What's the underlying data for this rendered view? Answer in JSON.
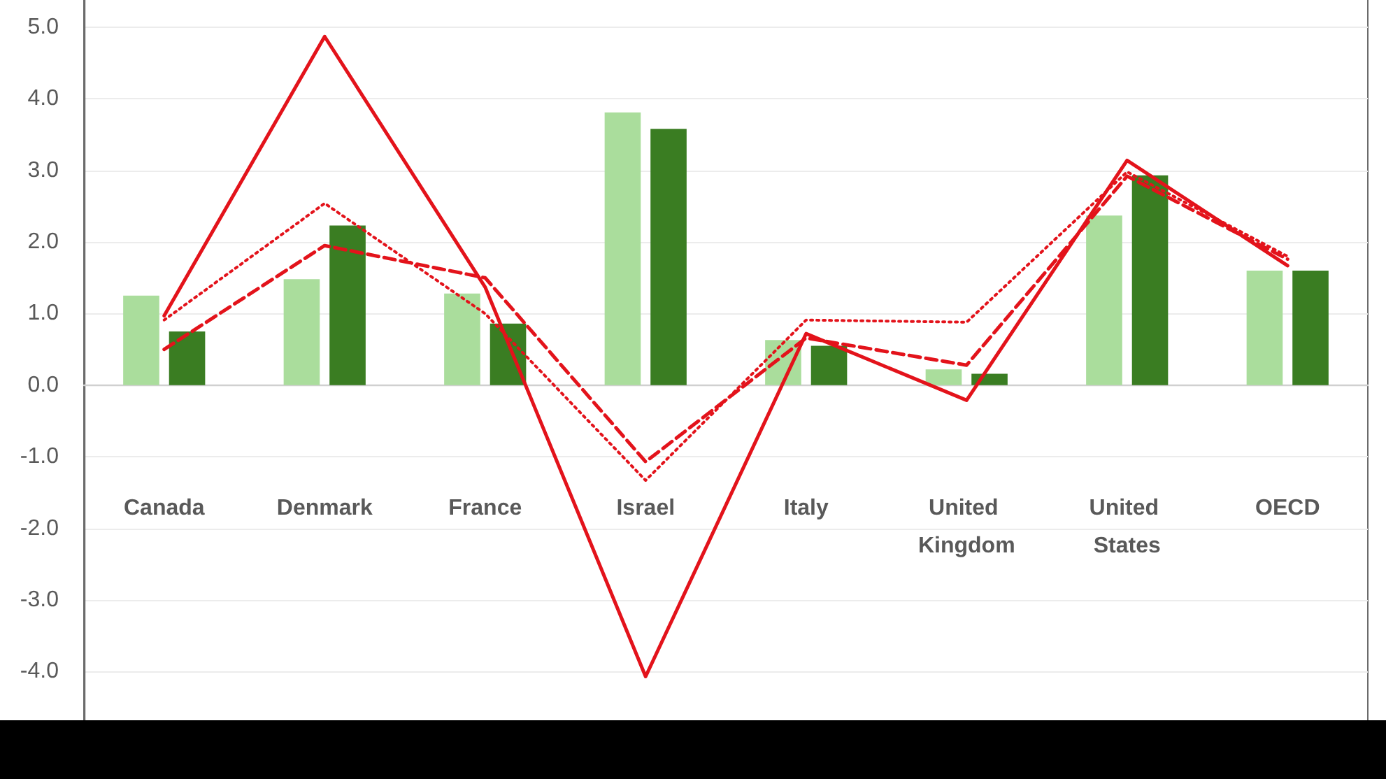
{
  "chart_data": {
    "type": "bar",
    "categories": [
      "Canada",
      "Denmark",
      "France",
      "Israel",
      "Italy",
      "United Kingdom",
      "United States",
      "OECD"
    ],
    "series": [
      {
        "color": "#aadd9c",
        "values": [
          1.25,
          1.48,
          1.28,
          3.81,
          0.63,
          0.22,
          2.37,
          1.6
        ]
      },
      {
        "color": "#3a7d22",
        "values": [
          0.75,
          2.23,
          0.86,
          3.58,
          0.55,
          0.16,
          2.93,
          1.6
        ]
      },
      {
        "type": "line",
        "color": "#e3131b",
        "line_style": "solid",
        "values": [
          0.97,
          4.87,
          1.37,
          -4.07,
          0.72,
          -0.21,
          3.14,
          1.67
        ]
      },
      {
        "type": "line",
        "color": "#e3131b",
        "line_style": "dashed",
        "values": [
          0.5,
          1.95,
          1.5,
          -1.07,
          0.66,
          0.28,
          2.92,
          1.76
        ]
      },
      {
        "type": "line",
        "color": "#e3131b",
        "line_style": "dotted",
        "values": [
          0.91,
          2.54,
          1.0,
          -1.33,
          0.91,
          0.88,
          2.98,
          1.8
        ]
      }
    ],
    "ylim": [
      -4.7,
      5.4
    ],
    "yticks": [
      {
        "value": -4,
        "label": "-4.0"
      },
      {
        "value": -3,
        "label": "-3.0"
      },
      {
        "value": -2,
        "label": "-2.0"
      },
      {
        "value": -1,
        "label": "-1.0"
      },
      {
        "value": 0,
        "label": "0.0"
      },
      {
        "value": 1,
        "label": "1.0"
      },
      {
        "value": 2,
        "label": "2.0"
      },
      {
        "value": 3,
        "label": "3.0"
      },
      {
        "value": 4,
        "label": "4.0"
      },
      {
        "value": 5,
        "label": "5.0"
      }
    ],
    "grid": "y",
    "marker": "none"
  }
}
